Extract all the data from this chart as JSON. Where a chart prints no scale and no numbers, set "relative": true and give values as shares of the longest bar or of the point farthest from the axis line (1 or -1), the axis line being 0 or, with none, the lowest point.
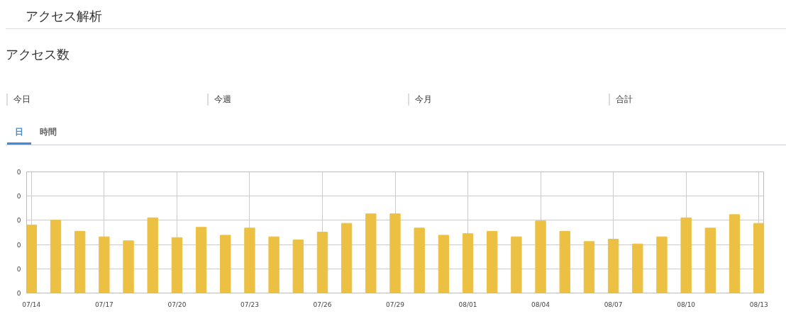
{
  "chart_data": {
    "type": "bar",
    "title": "アクセス解析",
    "subtitle": "アクセス数",
    "annotations": [
      "今日",
      "今週",
      "今月",
      "合計",
      "日",
      "時間",
      "0",
      "0",
      "0",
      "0",
      "0",
      "0"
    ],
    "categories": [
      "07/14",
      null,
      null,
      "07/17",
      null,
      null,
      "07/20",
      null,
      null,
      "07/23",
      null,
      null,
      "07/26",
      null,
      null,
      "07/29",
      null,
      null,
      "08/01",
      null,
      null,
      "08/04",
      null,
      null,
      "08/07",
      null,
      null,
      "08/10",
      null,
      null,
      "08/13"
    ],
    "values": [
      0.86,
      0.92,
      0.78,
      0.71,
      0.66,
      0.95,
      0.7,
      0.83,
      0.73,
      0.82,
      0.71,
      0.67,
      0.77,
      0.88,
      1,
      1,
      0.82,
      0.73,
      0.75,
      0.78,
      0.71,
      0.91,
      0.78,
      0.65,
      0.68,
      0.62,
      0.71,
      0.95,
      0.82,
      0.99,
      0.88
    ],
    "color": "#ecc143",
    "relative": true,
    "grid": true
  }
}
